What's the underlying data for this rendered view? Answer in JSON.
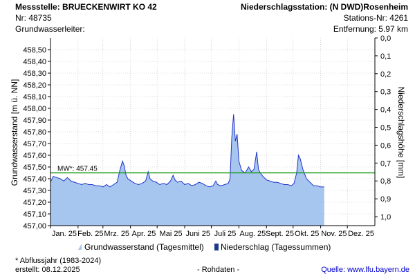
{
  "header": {
    "station_title": "Messstelle: BRUECKENWIRT KO 42",
    "station_nr": "Nr: 48735",
    "aquifer": "Grundwasserleiter:",
    "precip_station": "Niederschlagsstation: (N DWD)Rosenheim",
    "precip_nr": "Stations-Nr: 4261",
    "distance": "Entfernung: 5.97 km"
  },
  "footer": {
    "footnote": "* Abflussjahr (1983-2024)",
    "created": "erstellt:  08.12.2025",
    "raw": "- Rohdaten -",
    "source_prefix": "Quelle: ",
    "source_link": "www.lfu.bayern.de"
  },
  "legend": {
    "gw_label": "Grundwasserstand (Tagesmittel)",
    "precip_label": "Niederschlag (Tagessummen)"
  },
  "colors": {
    "gw_fill": "#a6c6ef",
    "gw_line": "#1f33c9",
    "mean_line": "#1a9a1a",
    "precip": "#1c3a8c",
    "grid": "#c0c0c0"
  },
  "chart_data": {
    "type": "area",
    "ylabel": "Grundwasserstand [m ü. NN]",
    "y2label": "Niederschlagshöhe [mm]",
    "ylim": [
      457.0,
      458.6
    ],
    "yticks": [
      "458,50",
      "458,40",
      "458,30",
      "458,20",
      "458,10",
      "458,00",
      "457,90",
      "457,80",
      "457,70",
      "457,60",
      "457,50",
      "457,40",
      "457,30",
      "457,20",
      "457,10",
      "457,00"
    ],
    "y2lim": [
      0,
      1.05
    ],
    "y2ticks": [
      "0,0",
      "0,1",
      "0,2",
      "0,3",
      "0,4",
      "0,5",
      "0,6",
      "0,7",
      "0,8",
      "0,9",
      "1,0"
    ],
    "months": [
      "Jan. 25",
      "Feb. 25",
      "Mrz. 25",
      "Apr. 25",
      "Mai 25",
      "Juni 25",
      "Juli 25",
      "Aug. 25",
      "Sept. 25",
      "Okt. 25",
      "Nov. 25",
      "Dez. 25"
    ],
    "grid": true,
    "mean": {
      "label": "MW*: 457.45",
      "value": 457.45
    },
    "series": [
      {
        "x": [
          "2025-01-01",
          "2025-01-04",
          "2025-01-08",
          "2025-01-12",
          "2025-01-16",
          "2025-01-20",
          "2025-01-24",
          "2025-01-28",
          "2025-02-01",
          "2025-02-05",
          "2025-02-09",
          "2025-02-13",
          "2025-02-17",
          "2025-02-21",
          "2025-02-25",
          "2025-03-01",
          "2025-03-05",
          "2025-03-09",
          "2025-03-13",
          "2025-03-17",
          "2025-03-20",
          "2025-03-23",
          "2025-03-25",
          "2025-03-27",
          "2025-03-29",
          "2025-04-02",
          "2025-04-06",
          "2025-04-10",
          "2025-04-14",
          "2025-04-18",
          "2025-04-21",
          "2025-04-23",
          "2025-04-26",
          "2025-04-30",
          "2025-05-04",
          "2025-05-08",
          "2025-05-12",
          "2025-05-16",
          "2025-05-19",
          "2025-05-21",
          "2025-05-24",
          "2025-05-28",
          "2025-06-01",
          "2025-06-05",
          "2025-06-09",
          "2025-06-13",
          "2025-06-17",
          "2025-06-21",
          "2025-06-25",
          "2025-06-29",
          "2025-07-03",
          "2025-07-06",
          "2025-07-08",
          "2025-07-12",
          "2025-07-16",
          "2025-07-20",
          "2025-07-22",
          "2025-07-24",
          "2025-07-26",
          "2025-07-28",
          "2025-07-30",
          "2025-08-01",
          "2025-08-04",
          "2025-08-08",
          "2025-08-12",
          "2025-08-15",
          "2025-08-18",
          "2025-08-21",
          "2025-08-23",
          "2025-08-25",
          "2025-08-28",
          "2025-09-01",
          "2025-09-05",
          "2025-09-09",
          "2025-09-13",
          "2025-09-17",
          "2025-09-21",
          "2025-09-25",
          "2025-09-29",
          "2025-10-02",
          "2025-10-05",
          "2025-10-07",
          "2025-10-09",
          "2025-10-12",
          "2025-10-16",
          "2025-10-20",
          "2025-10-24",
          "2025-10-28",
          "2025-11-01",
          "2025-11-05"
        ],
        "values": [
          457.37,
          457.42,
          457.41,
          457.4,
          457.38,
          457.41,
          457.38,
          457.37,
          457.36,
          457.35,
          457.36,
          457.35,
          457.35,
          457.34,
          457.34,
          457.33,
          457.35,
          457.33,
          457.35,
          457.37,
          457.47,
          457.55,
          457.51,
          457.43,
          457.4,
          457.38,
          457.36,
          457.35,
          457.36,
          457.38,
          457.46,
          457.4,
          457.38,
          457.37,
          457.35,
          457.36,
          457.35,
          457.38,
          457.43,
          457.39,
          457.37,
          457.38,
          457.35,
          457.36,
          457.34,
          457.35,
          457.37,
          457.36,
          457.34,
          457.33,
          457.34,
          457.38,
          457.35,
          457.34,
          457.35,
          457.36,
          457.4,
          457.75,
          457.95,
          457.72,
          457.78,
          457.55,
          457.47,
          457.45,
          457.5,
          457.46,
          457.48,
          457.63,
          457.48,
          457.45,
          457.42,
          457.39,
          457.38,
          457.37,
          457.37,
          457.36,
          457.35,
          457.35,
          457.34,
          457.36,
          457.45,
          457.6,
          457.57,
          457.48,
          457.4,
          457.37,
          457.34,
          457.34,
          457.33,
          457.33
        ]
      }
    ],
    "precipitation": []
  }
}
